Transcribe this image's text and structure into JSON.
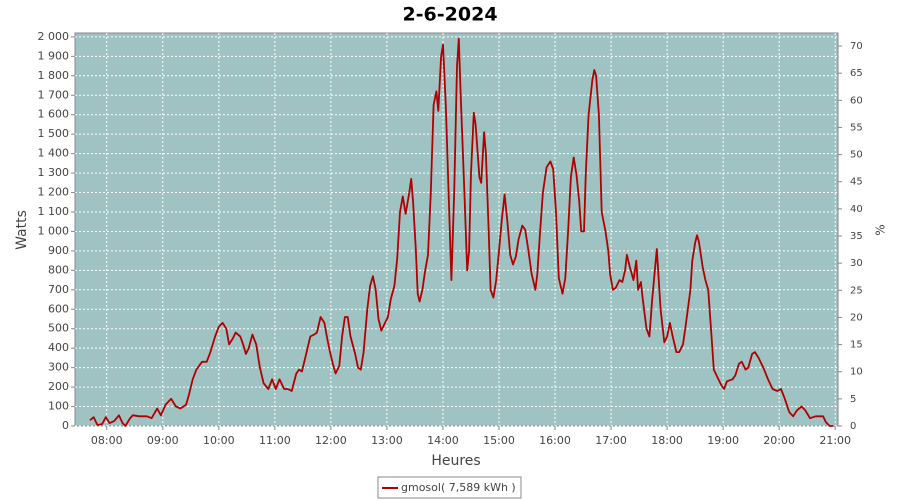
{
  "chart_data": {
    "type": "line",
    "title": "2-6-2024",
    "x_label": "Heures",
    "y_label": "Watts",
    "y2_label": "%",
    "x": [
      "07:42",
      "07:46",
      "07:50",
      "07:55",
      "07:59",
      "08:03",
      "08:08",
      "08:13",
      "08:17",
      "08:20",
      "08:25",
      "08:28",
      "08:35",
      "08:43",
      "08:48",
      "08:54",
      "08:58",
      "09:03",
      "09:09",
      "09:14",
      "09:19",
      "09:25",
      "09:28",
      "09:32",
      "09:36",
      "09:42",
      "09:47",
      "09:51",
      "09:56",
      "10:00",
      "10:04",
      "10:08",
      "10:11",
      "10:15",
      "10:18",
      "10:23",
      "10:26",
      "10:29",
      "10:32",
      "10:36",
      "10:40",
      "10:44",
      "10:48",
      "10:53",
      "10:57",
      "11:01",
      "11:05",
      "11:10",
      "11:14",
      "11:18",
      "11:23",
      "11:26",
      "11:29",
      "11:33",
      "11:38",
      "11:42",
      "11:45",
      "11:49",
      "11:53",
      "11:56",
      "11:59",
      "12:02",
      "12:05",
      "12:09",
      "12:12",
      "12:15",
      "12:18",
      "12:21",
      "12:26",
      "12:29",
      "12:32",
      "12:35",
      "12:39",
      "12:42",
      "12:45",
      "12:48",
      "12:51",
      "12:54",
      "12:57",
      "13:01",
      "13:04",
      "13:08",
      "13:11",
      "13:14",
      "13:17",
      "13:20",
      "13:24",
      "13:26",
      "13:28",
      "13:31",
      "13:33",
      "13:35",
      "13:38",
      "13:41",
      "13:44",
      "13:47",
      "13:50",
      "13:53",
      "13:55",
      "13:58",
      "14:00",
      "14:03",
      "14:06",
      "14:09",
      "14:12",
      "14:15",
      "14:17",
      "14:19",
      "14:23",
      "14:26",
      "14:28",
      "14:30",
      "14:33",
      "14:35",
      "14:39",
      "14:41",
      "14:44",
      "14:46",
      "14:49",
      "14:51",
      "14:54",
      "14:57",
      "15:00",
      "15:03",
      "15:06",
      "15:09",
      "15:12",
      "15:15",
      "15:18",
      "15:21",
      "15:25",
      "15:28",
      "15:31",
      "15:35",
      "15:39",
      "15:41",
      "15:44",
      "15:47",
      "15:51",
      "15:55",
      "15:58",
      "16:01",
      "16:04",
      "16:08",
      "16:11",
      "16:14",
      "16:17",
      "16:20",
      "16:23",
      "16:26",
      "16:28",
      "16:31",
      "16:33",
      "16:36",
      "16:40",
      "16:42",
      "16:44",
      "16:47",
      "16:50",
      "16:54",
      "16:57",
      "16:59",
      "17:02",
      "17:05",
      "17:09",
      "17:12",
      "17:15",
      "17:17",
      "17:20",
      "17:24",
      "17:27",
      "17:29",
      "17:32",
      "17:34",
      "17:38",
      "17:41",
      "17:44",
      "17:49",
      "17:53",
      "17:57",
      "18:00",
      "18:03",
      "18:06",
      "18:10",
      "18:13",
      "18:17",
      "18:20",
      "18:25",
      "18:27",
      "18:30",
      "18:32",
      "18:34",
      "18:38",
      "18:41",
      "18:44",
      "18:47",
      "18:50",
      "18:54",
      "18:58",
      "19:01",
      "19:04",
      "19:10",
      "19:13",
      "19:17",
      "19:20",
      "19:24",
      "19:27",
      "19:31",
      "19:34",
      "19:38",
      "19:43",
      "19:48",
      "19:53",
      "19:58",
      "20:02",
      "20:06",
      "20:11",
      "20:15",
      "20:19",
      "20:24",
      "20:28",
      "20:33",
      "20:39",
      "20:44",
      "20:47",
      "20:50",
      "20:54",
      "20:58"
    ],
    "series": [
      {
        "name": "gmosol( 7,589 kWh )",
        "color": "#b00000",
        "values": [
          30,
          45,
          5,
          10,
          45,
          15,
          25,
          55,
          15,
          0,
          40,
          55,
          50,
          50,
          40,
          90,
          55,
          110,
          140,
          100,
          90,
          110,
          160,
          240,
          290,
          330,
          330,
          380,
          460,
          510,
          530,
          500,
          420,
          450,
          480,
          460,
          420,
          370,
          400,
          470,
          420,
          300,
          220,
          190,
          240,
          190,
          240,
          190,
          190,
          180,
          270,
          290,
          280,
          360,
          460,
          470,
          480,
          560,
          530,
          450,
          380,
          320,
          270,
          310,
          460,
          560,
          560,
          460,
          370,
          300,
          290,
          380,
          600,
          720,
          770,
          700,
          550,
          490,
          520,
          560,
          650,
          720,
          860,
          1100,
          1180,
          1090,
          1200,
          1270,
          1150,
          900,
          680,
          640,
          700,
          800,
          880,
          1200,
          1650,
          1720,
          1620,
          1900,
          1960,
          1650,
          1200,
          750,
          1200,
          1850,
          1990,
          1700,
          1200,
          800,
          900,
          1300,
          1610,
          1550,
          1280,
          1250,
          1510,
          1400,
          1000,
          700,
          660,
          750,
          900,
          1060,
          1190,
          1050,
          880,
          830,
          870,
          960,
          1030,
          1010,
          920,
          780,
          700,
          780,
          1000,
          1200,
          1330,
          1360,
          1320,
          1100,
          760,
          680,
          760,
          1000,
          1280,
          1380,
          1290,
          1150,
          1000,
          1000,
          1300,
          1600,
          1780,
          1830,
          1800,
          1600,
          1100,
          1000,
          900,
          780,
          700,
          710,
          750,
          740,
          800,
          880,
          820,
          750,
          850,
          700,
          740,
          650,
          500,
          460,
          650,
          910,
          600,
          430,
          460,
          530,
          460,
          380,
          380,
          420,
          520,
          700,
          850,
          940,
          980,
          950,
          820,
          750,
          700,
          500,
          290,
          250,
          210,
          190,
          230,
          240,
          260,
          320,
          330,
          290,
          300,
          370,
          380,
          350,
          300,
          240,
          190,
          180,
          190,
          140,
          70,
          50,
          80,
          100,
          80,
          40,
          50,
          50,
          50,
          20,
          0,
          0
        ]
      }
    ],
    "xlim": [
      "07:26",
      "21:03"
    ],
    "xticks": [
      "08:00",
      "09:00",
      "10:00",
      "11:00",
      "12:00",
      "13:00",
      "14:00",
      "15:00",
      "16:00",
      "17:00",
      "18:00",
      "19:00",
      "20:00",
      "21:00"
    ],
    "ylim": [
      0,
      2020
    ],
    "yticks": [
      0,
      100,
      200,
      300,
      400,
      500,
      600,
      700,
      800,
      900,
      {
        "value": 1000,
        "label": "1 000"
      },
      {
        "value": 1100,
        "label": "1 100"
      },
      {
        "value": 1200,
        "label": "1 200"
      },
      {
        "value": 1300,
        "label": "1 300"
      },
      {
        "value": 1400,
        "label": "1 400"
      },
      {
        "value": 1500,
        "label": "1 500"
      },
      {
        "value": 1600,
        "label": "1 600"
      },
      {
        "value": 1700,
        "label": "1 700"
      },
      {
        "value": 1800,
        "label": "1 800"
      },
      {
        "value": 1900,
        "label": "1 900"
      },
      {
        "value": 2000,
        "label": "2 000"
      }
    ],
    "y2lim": [
      0,
      72.4
    ],
    "y2ticks": [
      0,
      5,
      10,
      15,
      20,
      25,
      30,
      35,
      40,
      45,
      50,
      55,
      60,
      65,
      70
    ],
    "grid": true,
    "background": "#9fc2c2"
  }
}
